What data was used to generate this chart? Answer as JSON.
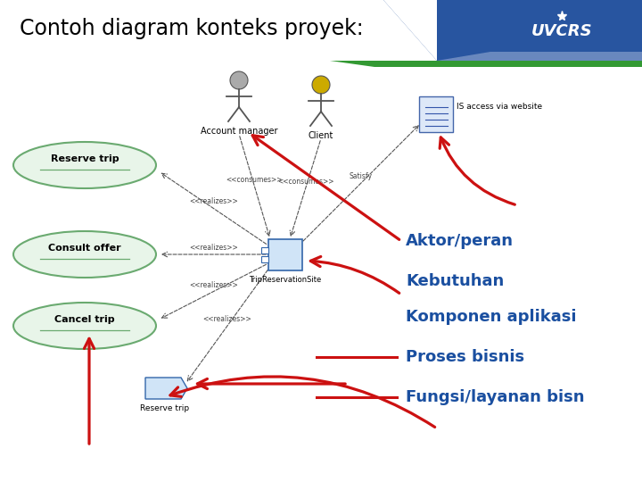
{
  "title": "Contoh diagram konteks proyek:",
  "title_fontsize": 17,
  "bg_color": "#ffffff",
  "blue_header": "#2855a0",
  "green_stripe": "#339933",
  "labels": {
    "aktor": "Aktor/peran",
    "kebutuhan": "Kebutuhan",
    "komponen": "Komponen aplikasi",
    "proses": "Proses bisnis",
    "fungsi": "Fungsi/layanan bisn"
  },
  "label_color": "#1a4fa0",
  "label_fontsize": 13,
  "arrow_color": "#cc1111",
  "ellipse_fill": "#e8f5e9",
  "ellipse_edge": "#6aaa70",
  "use_cases": [
    "Reserve trip",
    "Consult offer",
    "Cancel trip"
  ],
  "uvcrs_text": "UVCRS"
}
